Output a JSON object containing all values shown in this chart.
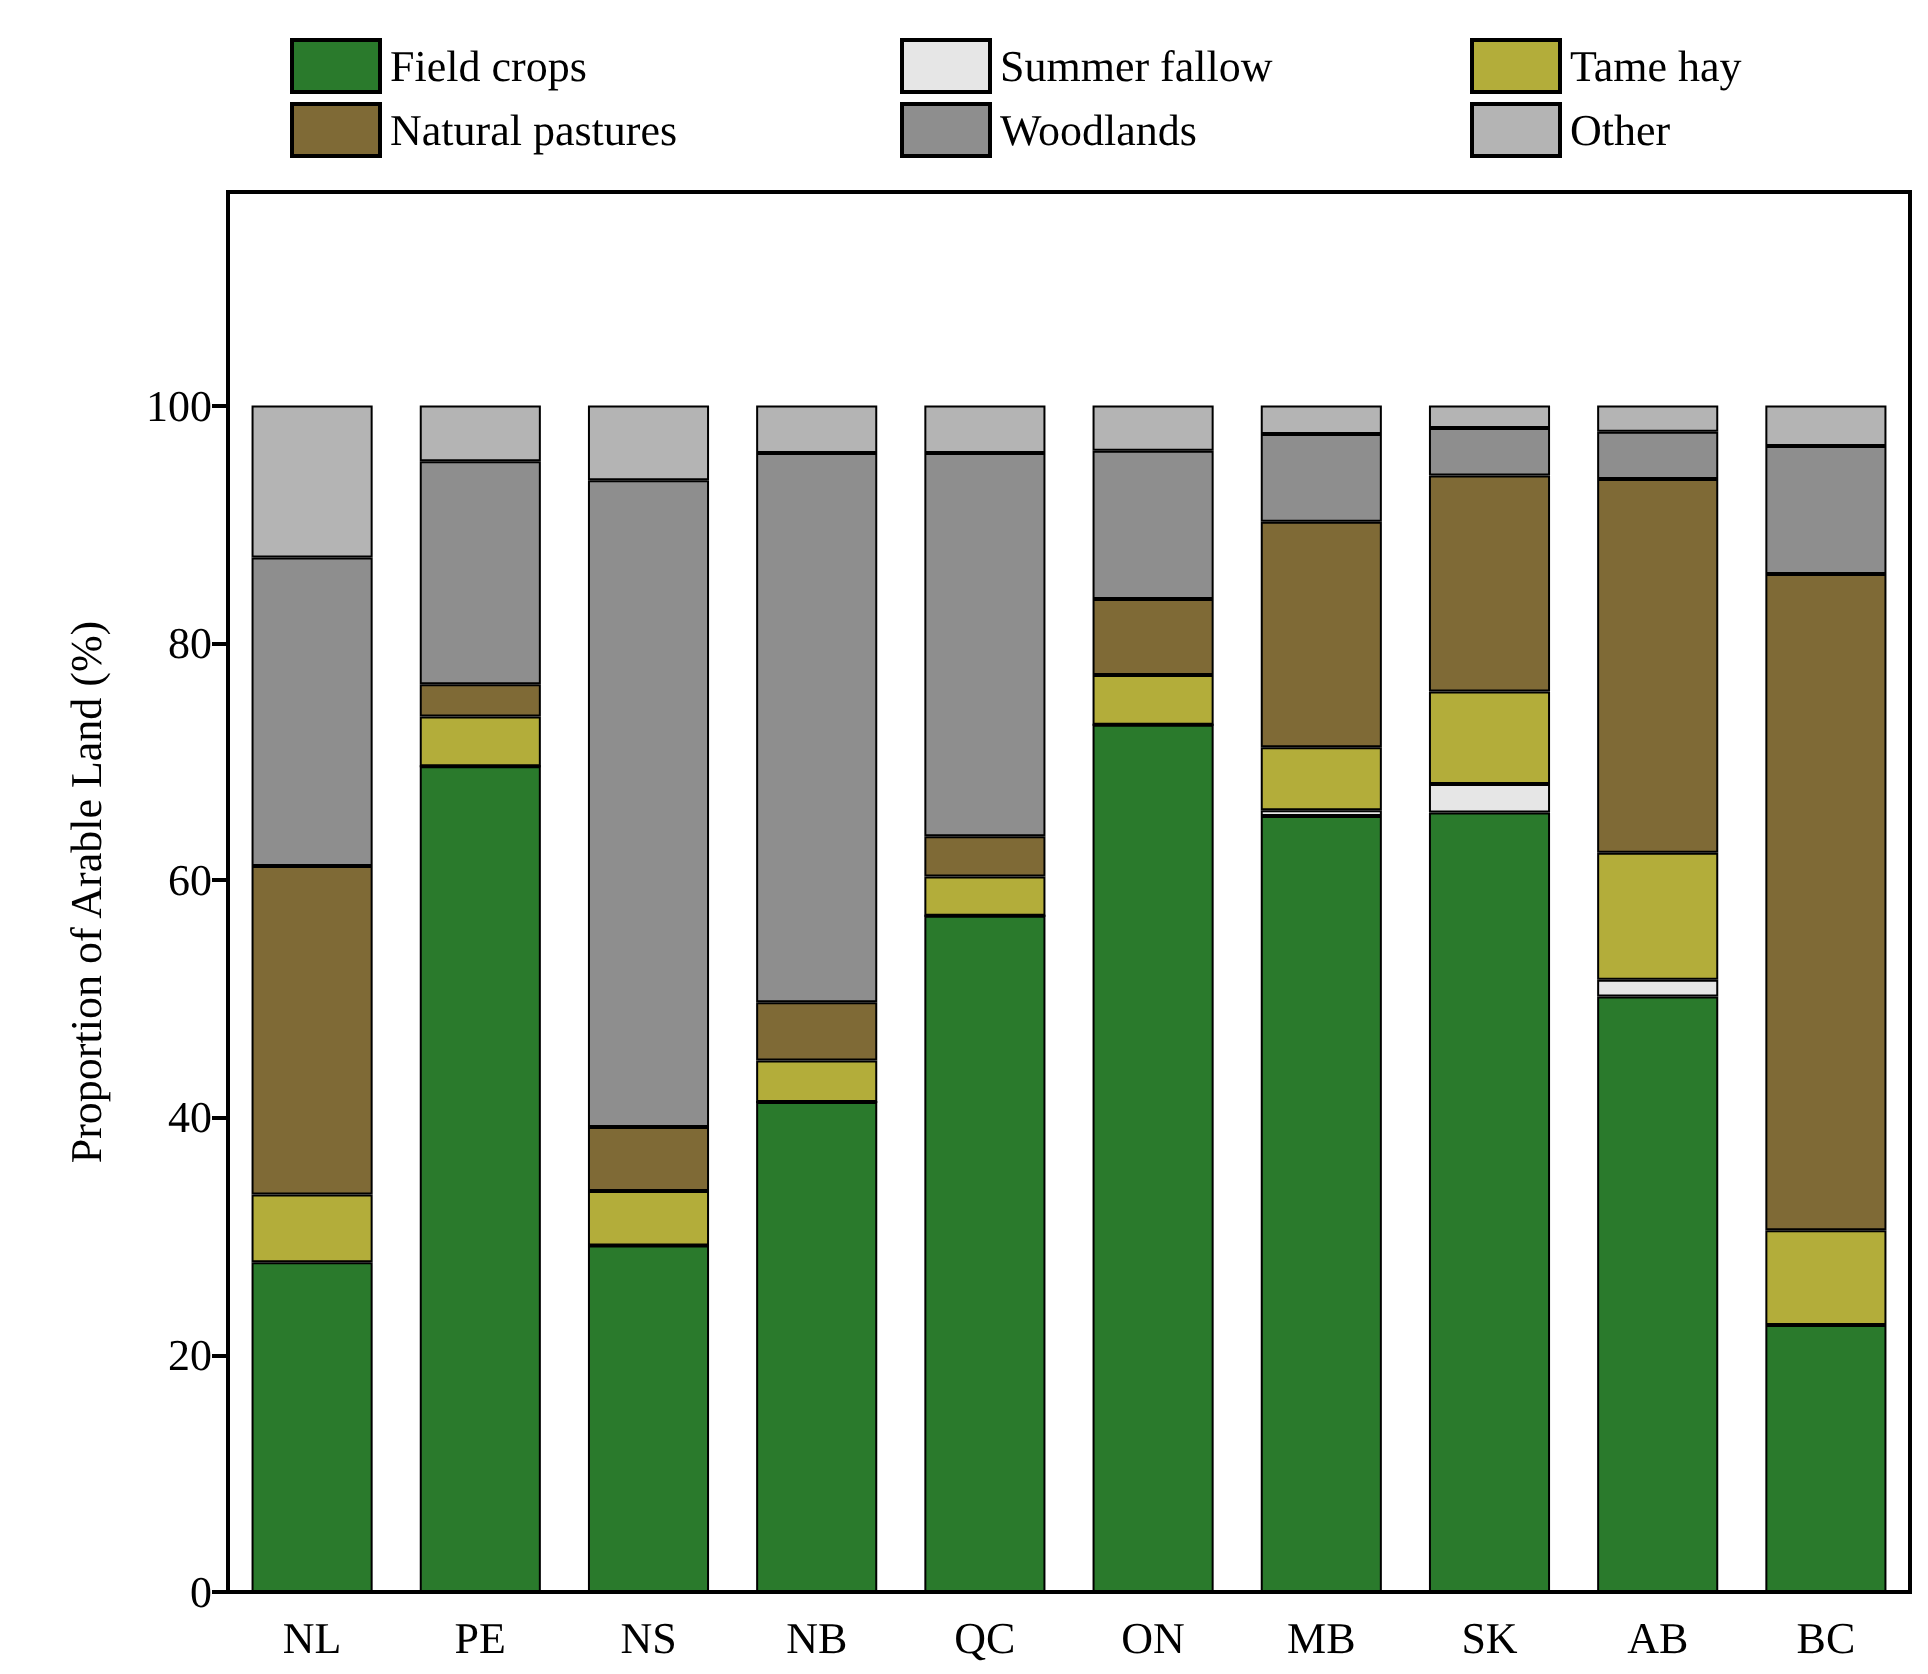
{
  "chart_data": {
    "type": "bar",
    "stacked": true,
    "ylabel": "Proportion of Arable Land (%)",
    "categories": [
      "NL",
      "PE",
      "NS",
      "NB",
      "QC",
      "ON",
      "MB",
      "SK",
      "AB",
      "BC"
    ],
    "series": [
      {
        "name": "Field crops",
        "color": "#2a7a2c",
        "values": [
          27.8,
          69.6,
          29.2,
          41.3,
          57.0,
          73.1,
          65.4,
          65.7,
          50.2,
          22.5
        ]
      },
      {
        "name": "Summer fallow",
        "color": "#e6e6e6",
        "values": [
          null,
          0,
          0,
          0,
          0,
          0,
          0.5,
          2.4,
          1.4,
          null
        ]
      },
      {
        "name": "Tame hay",
        "color": "#b3ad3a",
        "values": [
          5.7,
          4.2,
          4.6,
          3.5,
          3.3,
          4.2,
          5.3,
          7.8,
          10.7,
          8.0
        ]
      },
      {
        "name": "Natural pastures",
        "color": "#7f6a36",
        "values": [
          27.7,
          2.7,
          5.4,
          4.9,
          3.4,
          6.4,
          19.0,
          18.2,
          31.5,
          55.3
        ]
      },
      {
        "name": "Woodlands",
        "color": "#8e8e8e",
        "values": [
          26.0,
          18.8,
          54.5,
          46.3,
          32.3,
          12.5,
          7.4,
          4.0,
          4.0,
          10.8
        ]
      },
      {
        "name": "Other",
        "color": "#b4b4b4",
        "values": [
          12.8,
          4.7,
          6.3,
          4.0,
          4.0,
          3.8,
          2.4,
          1.9,
          2.2,
          3.4
        ]
      }
    ],
    "ylim": [
      0,
      118
    ],
    "yticks": [
      0,
      20,
      40,
      60,
      80,
      100
    ],
    "grid": false,
    "legend": "top"
  }
}
